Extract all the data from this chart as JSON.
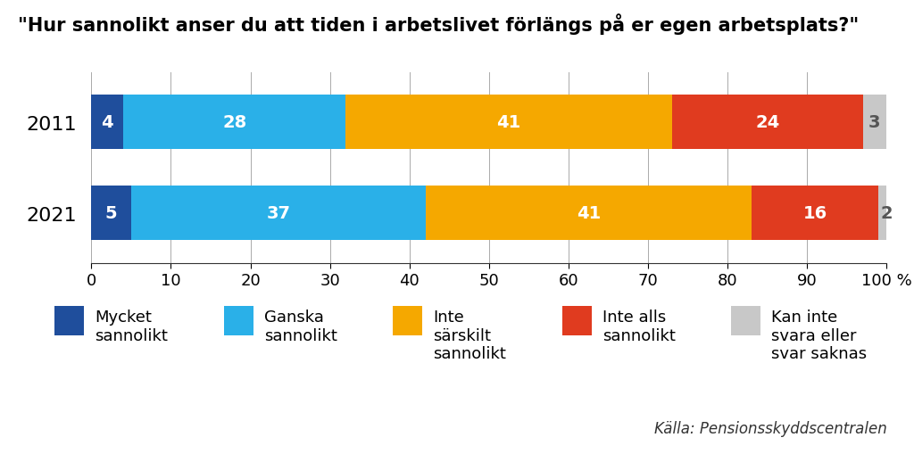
{
  "title": "\"Hur sannolikt anser du att tiden i arbetslivet förlängs på er egen arbetsplats?\"",
  "years": [
    "2011",
    "2021"
  ],
  "categories": [
    "Mycket\nsannolikt",
    "Ganska\nsannolikt",
    "Inte\nsärskilt\nsannolikt",
    "Inte alls\nsannolikt",
    "Kan inte\nsvara eller\nsvar saknas"
  ],
  "values": {
    "2011": [
      4,
      28,
      41,
      24,
      3
    ],
    "2021": [
      5,
      37,
      41,
      16,
      2
    ]
  },
  "colors": [
    "#1f4e9c",
    "#2ab0e8",
    "#f5a800",
    "#e03b1f",
    "#c8c8c8"
  ],
  "source": "Källa: Pensionsskyddscentralen",
  "xlim": [
    0,
    100
  ],
  "xticks": [
    0,
    10,
    20,
    30,
    40,
    50,
    60,
    70,
    80,
    90,
    100
  ],
  "background_color": "#ffffff",
  "title_fontsize": 15,
  "label_fontsize": 14,
  "tick_fontsize": 13,
  "year_fontsize": 16,
  "legend_fontsize": 13,
  "source_fontsize": 12
}
